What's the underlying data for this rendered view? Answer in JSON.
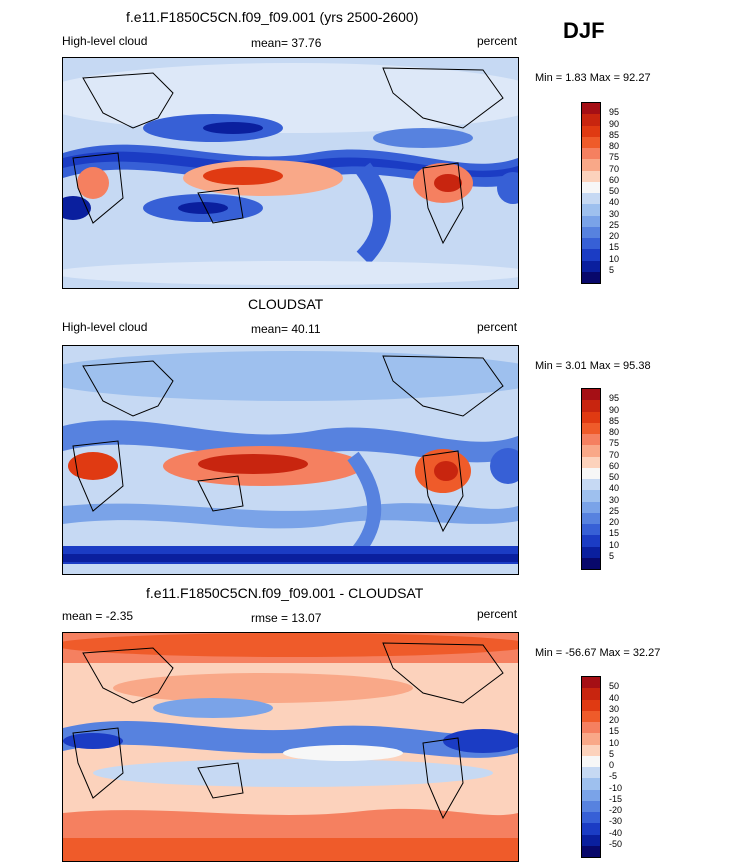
{
  "season": "DJF",
  "panels": [
    {
      "title": "f.e11.F1850C5CN.f09_f09.001 (yrs 2500-2600)",
      "left_label": "High-level cloud",
      "center_label": "mean=  37.76",
      "right_label": "percent",
      "minmax": "Min =   1.83 Max =  92.27",
      "legend_levels": [
        "95",
        "90",
        "85",
        "80",
        "75",
        "70",
        "60",
        "50",
        "40",
        "30",
        "25",
        "20",
        "15",
        "10",
        "5"
      ],
      "legend_colors": [
        "#a50f15",
        "#c8250f",
        "#e03a12",
        "#ef5b2a",
        "#f58060",
        "#f9a888",
        "#fcd2bc",
        "#f7f7f7",
        "#c6d9f3",
        "#9ec0ee",
        "#7aa3e8",
        "#5782df",
        "#3760d6",
        "#1b3cc4",
        "#0a1f9e",
        "#08086b"
      ]
    },
    {
      "title": "CLOUDSAT",
      "left_label": "High-level cloud",
      "center_label": "mean=  40.11",
      "right_label": "percent",
      "minmax": "Min =   3.01 Max =  95.38",
      "legend_levels": [
        "95",
        "90",
        "85",
        "80",
        "75",
        "70",
        "60",
        "50",
        "40",
        "30",
        "25",
        "20",
        "15",
        "10",
        "5"
      ],
      "legend_colors": [
        "#a50f15",
        "#c8250f",
        "#e03a12",
        "#ef5b2a",
        "#f58060",
        "#f9a888",
        "#fcd2bc",
        "#f7f7f7",
        "#c6d9f3",
        "#9ec0ee",
        "#7aa3e8",
        "#5782df",
        "#3760d6",
        "#1b3cc4",
        "#0a1f9e",
        "#08086b"
      ]
    },
    {
      "title": "f.e11.F1850C5CN.f09_f09.001 - CLOUDSAT",
      "left_label": "mean =  -2.35",
      "center_label": "rmse =  13.07",
      "right_label": "percent",
      "minmax": "Min = -56.67 Max =  32.27",
      "legend_levels": [
        "50",
        "40",
        "30",
        "20",
        "15",
        "10",
        "5",
        "0",
        "-5",
        "-10",
        "-15",
        "-20",
        "-30",
        "-40",
        "-50"
      ],
      "legend_colors": [
        "#a50f15",
        "#c8250f",
        "#e03a12",
        "#ef5b2a",
        "#f58060",
        "#f9a888",
        "#fcd2bc",
        "#f7f7f7",
        "#c6d9f3",
        "#9ec0ee",
        "#7aa3e8",
        "#5782df",
        "#3760d6",
        "#1b3cc4",
        "#0a1f9e",
        "#08086b"
      ]
    }
  ]
}
